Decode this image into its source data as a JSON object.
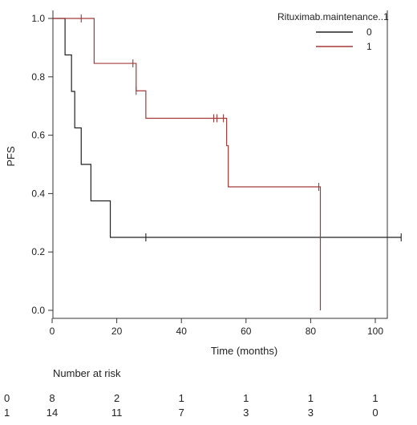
{
  "chart_data": {
    "type": "line",
    "subtype": "kaplan-meier",
    "title": "",
    "xlabel": "Time (months)",
    "ylabel": "PFS",
    "xlim": [
      0,
      110
    ],
    "ylim": [
      0,
      1.0
    ],
    "xticks": [
      0,
      20,
      40,
      60,
      80,
      100
    ],
    "yticks": [
      0.0,
      0.2,
      0.4,
      0.6,
      0.8,
      1.0
    ],
    "xtick_labels": [
      "0",
      "20",
      "40",
      "60",
      "80",
      "100"
    ],
    "ytick_labels": [
      "0.0",
      "0.2",
      "0.4",
      "0.6",
      "0.8",
      "1.0"
    ],
    "grid": false,
    "legend": {
      "title": "Rituximab.maintenance..1",
      "position": "top-right",
      "entries": [
        {
          "label": "0",
          "color": "#222222"
        },
        {
          "label": "1",
          "color": "#a23a3a"
        }
      ]
    },
    "series": [
      {
        "name": "0",
        "color": "#222222",
        "steps": [
          [
            0,
            1.0
          ],
          [
            4,
            0.875
          ],
          [
            6,
            0.75
          ],
          [
            7,
            0.625
          ],
          [
            9,
            0.5
          ],
          [
            12,
            0.375
          ],
          [
            18,
            0.25
          ],
          [
            108,
            0.25
          ]
        ],
        "censor_x": [
          29,
          108
        ]
      },
      {
        "name": "1",
        "color": "#a23a3a",
        "steps": [
          [
            0,
            1.0
          ],
          [
            13,
            0.846
          ],
          [
            26,
            0.752
          ],
          [
            29,
            0.658
          ],
          [
            54,
            0.564
          ],
          [
            54.5,
            0.423
          ],
          [
            83,
            0.423
          ],
          [
            83,
            0.0
          ]
        ],
        "censor_x": [
          9,
          25,
          26,
          50,
          51,
          53,
          82.5
        ]
      }
    ]
  },
  "risk_table": {
    "title": "Number at risk",
    "times": [
      0,
      20,
      40,
      60,
      80,
      100
    ],
    "rows": [
      {
        "label": "0",
        "values": [
          "8",
          "2",
          "1",
          "1",
          "1",
          "1"
        ]
      },
      {
        "label": "1",
        "values": [
          "14",
          "11",
          "7",
          "3",
          "3",
          "0"
        ]
      }
    ]
  }
}
